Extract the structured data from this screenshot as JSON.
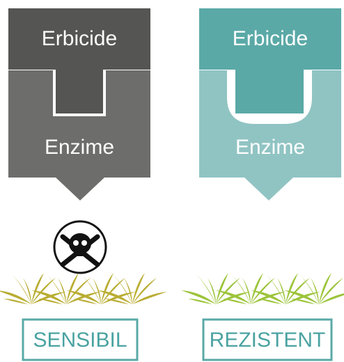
{
  "panels": [
    {
      "top": "Erbicide",
      "bottom": "Enzime",
      "result": "SENSIBIL"
    },
    {
      "top": "Erbicide",
      "bottom": "Enzime",
      "result": "REZISTENT"
    }
  ]
}
